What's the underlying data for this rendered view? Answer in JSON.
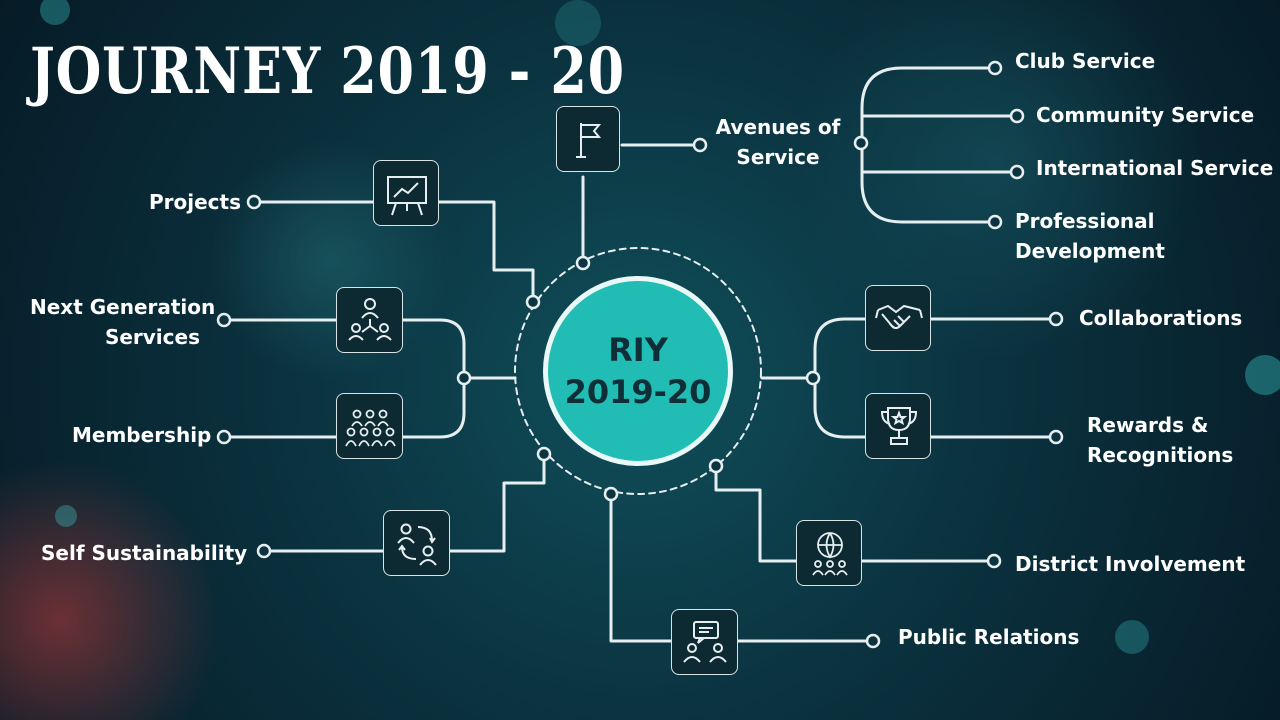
{
  "title": "JOURNEY 2019 - 20",
  "hub": {
    "line1": "RIY",
    "line2": "2019-20"
  },
  "colors": {
    "accent": "#21bdb4",
    "line": "#e6eef0",
    "background": "#0b3340"
  },
  "branches": {
    "projects": "Projects",
    "next_gen_1": "Next Generation",
    "next_gen_2": "Services",
    "membership": "Membership",
    "self_sustainability": "Self Sustainability",
    "avenues_1": "Avenues of",
    "avenues_2": "Service",
    "collaborations": "Collaborations",
    "rewards_1": "Rewards &",
    "rewards_2": "Recognitions",
    "district": "District Involvement",
    "public_relations": "Public Relations"
  },
  "avenues": {
    "club": "Club Service",
    "community": "Community Service",
    "international": "International Service",
    "professional_1": "Professional",
    "professional_2": "Development"
  },
  "icons": {
    "avenues": "flag-icon",
    "projects": "presentation-board-icon",
    "next_gen": "team-network-icon",
    "membership": "group-icon",
    "self_sustainability": "people-cycle-icon",
    "collaborations": "handshake-icon",
    "rewards": "trophy-icon",
    "district": "globe-people-icon",
    "public_relations": "discussion-icon"
  }
}
